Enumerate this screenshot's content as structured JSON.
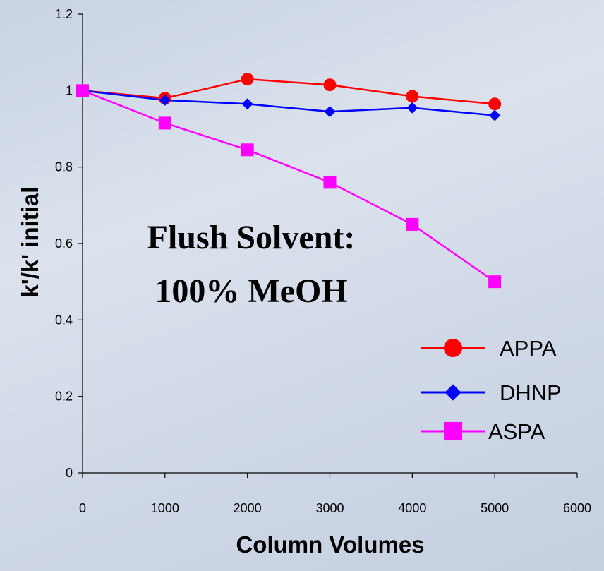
{
  "chart_data": {
    "type": "line",
    "title": "",
    "xlabel": "Column Volumes",
    "ylabel": "k'/k' initial",
    "xlim": [
      0,
      6000
    ],
    "ylim": [
      0,
      1.2
    ],
    "x_ticks": [
      "0",
      "1000",
      "2000",
      "3000",
      "4000",
      "5000",
      "6000"
    ],
    "y_ticks": [
      "0",
      "0.2",
      "0.4",
      "0.6",
      "0.8",
      "1",
      "1.2"
    ],
    "x": [
      0,
      1000,
      2000,
      3000,
      4000,
      5000
    ],
    "grid": false,
    "legend_position": "bottom-right",
    "annotation": [
      "Flush Solvent:",
      "100% MeOH"
    ],
    "series": [
      {
        "name": "APPA",
        "color": "#ff0000",
        "marker": "circle",
        "values": [
          1.0,
          0.98,
          1.03,
          1.015,
          0.985,
          0.965
        ]
      },
      {
        "name": "DHNP",
        "color": "#0000ff",
        "marker": "diamond",
        "values": [
          1.0,
          0.975,
          0.965,
          0.945,
          0.955,
          0.935
        ]
      },
      {
        "name": "ASPA",
        "color": "#ff00ff",
        "marker": "square",
        "values": [
          1.0,
          0.915,
          0.845,
          0.76,
          0.65,
          0.5
        ]
      }
    ]
  }
}
